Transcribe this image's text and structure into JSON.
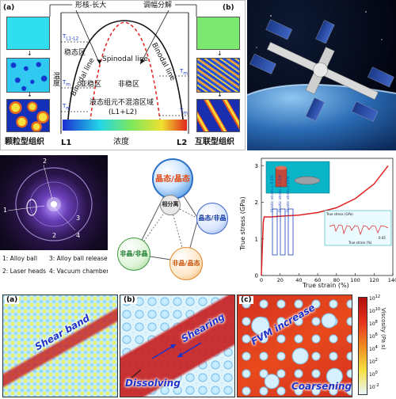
{
  "phase": {
    "tag_a": "(a)",
    "tag_b": "(b)",
    "nucleation": "形核-长大",
    "spinodal_decomp": "调幅分解",
    "temp_axis": "温度",
    "metastable": "稳态区",
    "substable": "亚稳区",
    "unstable": "非稳区",
    "spinodal_line": "Spinodal line",
    "binodal_left": "Binodal line",
    "binodal_right": "Binodal line",
    "immiscible": "液态组元不混溶区域",
    "immiscible_sub": "(L1+L2)",
    "concentration": "浓度",
    "l1": "L1",
    "l2": "L2",
    "particle": "颗粒型组织",
    "interconnect": "互联型组织",
    "t_lab_1": "T",
    "t_sub_1": "L1-L2",
    "t_lab_2": "T",
    "t_sub_2": "m",
    "t_lab_3": "T",
    "t_sub_3": "m",
    "t_lab_4": "T",
    "t_sub_4": "m",
    "t_lab_5": "T",
    "t_sub_5": "m",
    "accent_left": "#2fdff0",
    "accent_right": "#7de86f"
  },
  "levitation": {
    "n1": "1",
    "n2": "2",
    "n2b": "2",
    "n3": "3",
    "n4": "4",
    "legend_1": "1: Alloy ball",
    "legend_3": "3: Alloy ball releaser",
    "legend_2": "2: Laser heads",
    "legend_4": "4: Vacuum chamber"
  },
  "network": {
    "center": "相分离",
    "top": "晶态/晶态",
    "right": "晶态/非晶",
    "left": "非晶/非晶",
    "bottom": "非晶/晶态"
  },
  "stress": {
    "ylabel": "True stress (GPa)",
    "xlabel": "True strain (%)",
    "yticks": [
      "0",
      "1",
      "2",
      "3"
    ],
    "xticks": [
      "0",
      "20",
      "40",
      "60",
      "80",
      "100",
      "120",
      "140"
    ],
    "plastic_1": "Plastic strain = 5.5%",
    "plastic_2": "Plastic strain = 7.2%",
    "plastic_3": "Plastic strain = 11%",
    "inset_y": "True stress (GPa)",
    "inset_x": "True strain (%)",
    "inset_scale": "0.05"
  },
  "chart_data": {
    "type": "line",
    "xlabel": "True strain (%)",
    "ylabel": "True stress (GPa)",
    "xlim": [
      0,
      140
    ],
    "ylim": [
      0,
      3.2
    ],
    "series": [
      {
        "x": [
          0,
          2,
          3,
          10,
          20,
          40,
          60,
          80,
          100,
          120,
          135
        ],
        "values": [
          0,
          1.45,
          1.6,
          1.6,
          1.62,
          1.65,
          1.72,
          1.85,
          2.1,
          2.5,
          3.0
        ]
      }
    ]
  },
  "simulation": {
    "tag_a": "(a)",
    "tag_b": "(b)",
    "tag_c": "(c)",
    "shear_band": "Shear band",
    "shearing": "Shearing",
    "dissolving": "Dissolving",
    "fvm_increase": "FVM increase",
    "coarsening": "Coarsening",
    "viscosity": "Viscosity (Pa s)",
    "scale_top": "10",
    "scale_top_exp": "12",
    "scale_mid1": "10",
    "scale_mid1_exp": "10",
    "scale_mid2": "10",
    "scale_mid2_exp": "8",
    "scale_mid3": "10",
    "scale_mid3_exp": "6",
    "scale_mid4": "10",
    "scale_mid4_exp": "4",
    "scale_mid5": "10",
    "scale_mid5_exp": "2",
    "scale_bot": "10",
    "scale_bot_exp": "0",
    "scale_bot2": "10",
    "scale_bot2_exp": "-2"
  }
}
